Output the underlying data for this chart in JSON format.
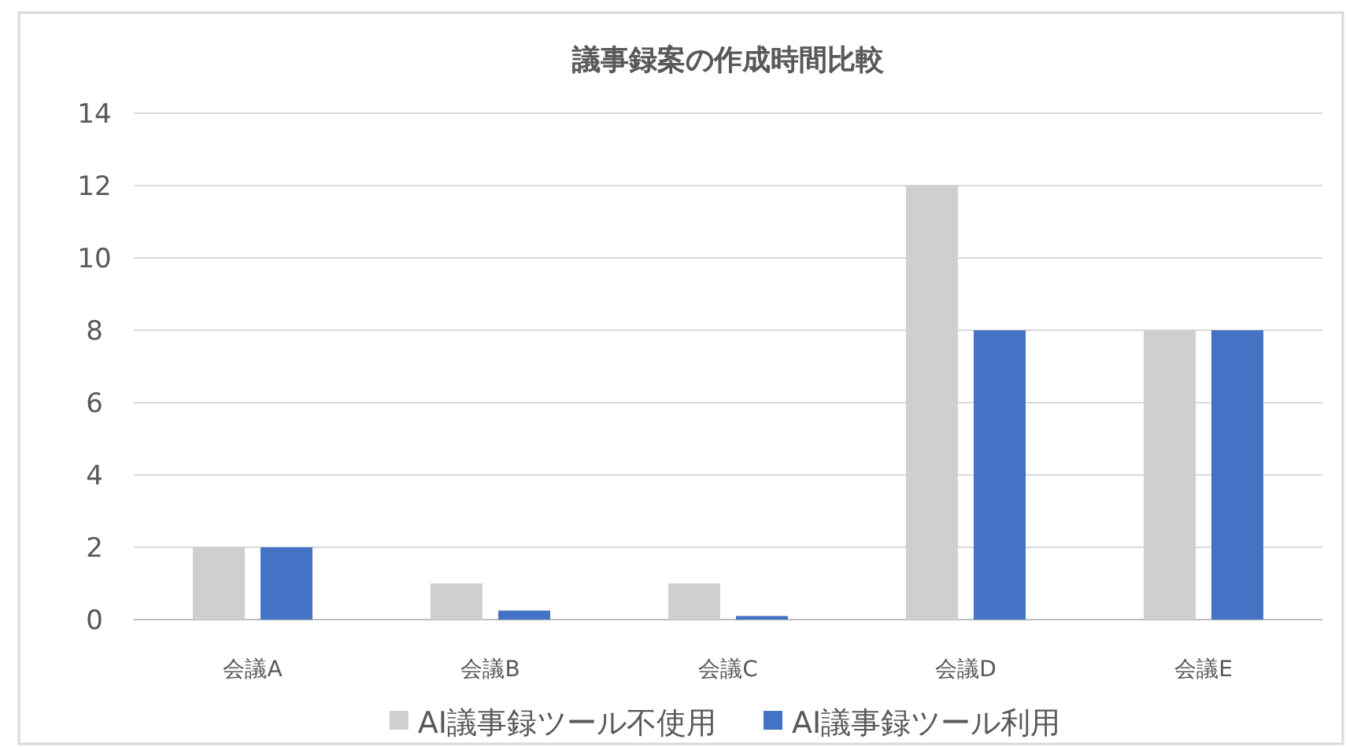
{
  "chart_data": {
    "type": "bar",
    "title": "議事録案の作成時間比較",
    "categories": [
      "会議A",
      "会議B",
      "会議C",
      "会議D",
      "会議E"
    ],
    "series": [
      {
        "name": "AI議事録ツール不使用",
        "color": "#d0cece",
        "values": [
          2,
          1,
          1,
          12,
          8
        ]
      },
      {
        "name": "AI議事録ツール利用",
        "color": "#4472c4",
        "values": [
          2,
          0.25,
          0.1,
          8,
          8
        ]
      }
    ],
    "ylim": [
      0,
      14
    ],
    "yticks": [
      0,
      2,
      4,
      6,
      8,
      10,
      12,
      14
    ],
    "grid": "y",
    "legend": "bottom"
  }
}
